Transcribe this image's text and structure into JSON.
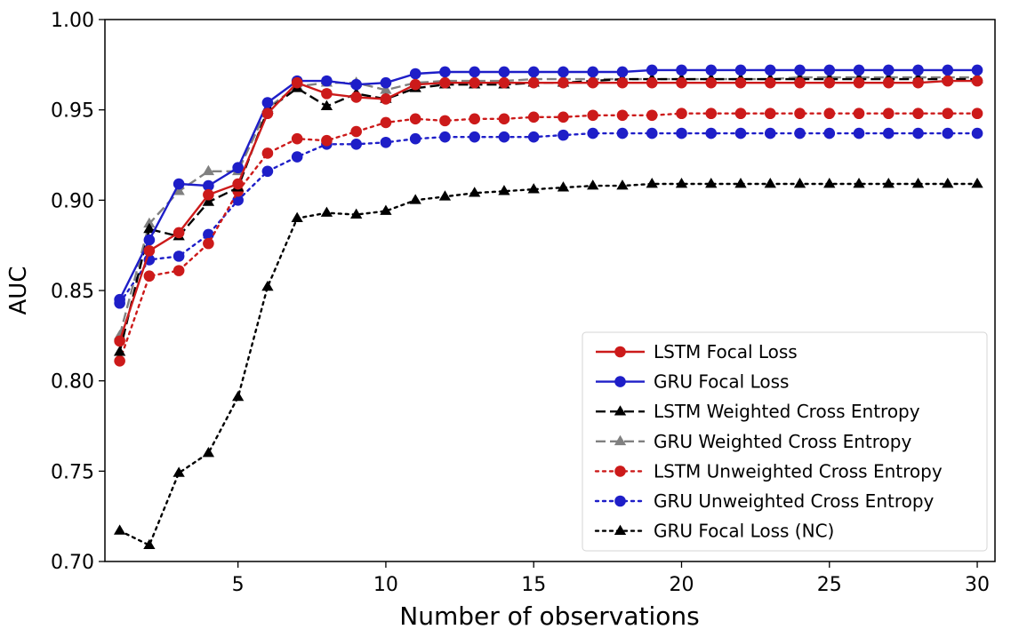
{
  "chart_data": {
    "type": "line",
    "title": "",
    "xlabel": "Number of observations",
    "ylabel": "AUC",
    "xlim": [
      0.5,
      30.6
    ],
    "ylim": [
      0.7,
      1.0
    ],
    "xticks": [
      5,
      10,
      15,
      20,
      25,
      30
    ],
    "xtick_labels": [
      "5",
      "10",
      "15",
      "20",
      "25",
      "30"
    ],
    "yticks": [
      0.7,
      0.75,
      0.8,
      0.85,
      0.9,
      0.95,
      1.0
    ],
    "ytick_labels": [
      "0.70",
      "0.75",
      "0.80",
      "0.85",
      "0.90",
      "0.95",
      "1.00"
    ],
    "grid": false,
    "legend_position": "lower-right",
    "x": [
      1,
      2,
      3,
      4,
      5,
      6,
      7,
      8,
      9,
      10,
      11,
      12,
      13,
      14,
      15,
      16,
      17,
      18,
      19,
      20,
      21,
      22,
      23,
      24,
      25,
      26,
      27,
      28,
      29,
      30
    ],
    "series": [
      {
        "name": "LSTM Focal Loss",
        "color": "#cc1a1a",
        "line_style": "solid",
        "marker": "circle",
        "values": [
          0.822,
          0.872,
          0.882,
          0.903,
          0.909,
          0.948,
          0.965,
          0.959,
          0.957,
          0.956,
          0.964,
          0.965,
          0.965,
          0.965,
          0.965,
          0.965,
          0.965,
          0.965,
          0.965,
          0.965,
          0.965,
          0.965,
          0.965,
          0.965,
          0.965,
          0.965,
          0.965,
          0.965,
          0.966,
          0.966
        ]
      },
      {
        "name": "GRU Focal Loss",
        "color": "#1e1ec8",
        "line_style": "solid",
        "marker": "circle",
        "values": [
          0.845,
          0.878,
          0.909,
          0.908,
          0.918,
          0.954,
          0.966,
          0.966,
          0.964,
          0.965,
          0.97,
          0.971,
          0.971,
          0.971,
          0.971,
          0.971,
          0.971,
          0.971,
          0.972,
          0.972,
          0.972,
          0.972,
          0.972,
          0.972,
          0.972,
          0.972,
          0.972,
          0.972,
          0.972,
          0.972
        ]
      },
      {
        "name": "LSTM Weighted Cross Entropy",
        "color": "#000000",
        "line_style": "dashed",
        "marker": "triangle",
        "values": [
          0.816,
          0.884,
          0.88,
          0.899,
          0.907,
          0.95,
          0.962,
          0.952,
          0.959,
          0.956,
          0.962,
          0.964,
          0.964,
          0.964,
          0.965,
          0.965,
          0.966,
          0.967,
          0.967,
          0.967,
          0.967,
          0.967,
          0.967,
          0.967,
          0.967,
          0.967,
          0.967,
          0.967,
          0.967,
          0.967
        ]
      },
      {
        "name": "GRU Weighted Cross Entropy",
        "color": "#808080",
        "line_style": "dashed",
        "marker": "triangle",
        "values": [
          0.825,
          0.887,
          0.905,
          0.916,
          0.916,
          0.951,
          0.963,
          0.965,
          0.965,
          0.961,
          0.965,
          0.966,
          0.966,
          0.966,
          0.967,
          0.967,
          0.967,
          0.967,
          0.967,
          0.967,
          0.967,
          0.967,
          0.967,
          0.968,
          0.968,
          0.968,
          0.968,
          0.968,
          0.968,
          0.968
        ]
      },
      {
        "name": "LSTM Unweighted Cross Entropy",
        "color": "#cc1a1a",
        "line_style": "dotted",
        "marker": "circle",
        "values": [
          0.811,
          0.858,
          0.861,
          0.876,
          0.905,
          0.926,
          0.934,
          0.933,
          0.938,
          0.943,
          0.945,
          0.944,
          0.945,
          0.945,
          0.946,
          0.946,
          0.947,
          0.947,
          0.947,
          0.948,
          0.948,
          0.948,
          0.948,
          0.948,
          0.948,
          0.948,
          0.948,
          0.948,
          0.948,
          0.948
        ]
      },
      {
        "name": "GRU Unweighted Cross Entropy",
        "color": "#1e1ec8",
        "line_style": "dotted",
        "marker": "circle",
        "values": [
          0.843,
          0.867,
          0.869,
          0.881,
          0.9,
          0.916,
          0.924,
          0.931,
          0.931,
          0.932,
          0.934,
          0.935,
          0.935,
          0.935,
          0.935,
          0.936,
          0.937,
          0.937,
          0.937,
          0.937,
          0.937,
          0.937,
          0.937,
          0.937,
          0.937,
          0.937,
          0.937,
          0.937,
          0.937,
          0.937
        ]
      },
      {
        "name": "GRU Focal Loss (NC)",
        "color": "#000000",
        "line_style": "dotted",
        "marker": "triangle",
        "values": [
          0.717,
          0.709,
          0.749,
          0.76,
          0.791,
          0.852,
          0.89,
          0.893,
          0.892,
          0.894,
          0.9,
          0.902,
          0.904,
          0.905,
          0.906,
          0.907,
          0.908,
          0.908,
          0.909,
          0.909,
          0.909,
          0.909,
          0.909,
          0.909,
          0.909,
          0.909,
          0.909,
          0.909,
          0.909,
          0.909
        ]
      }
    ]
  }
}
